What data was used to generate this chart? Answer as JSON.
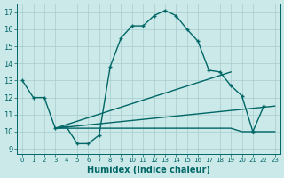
{
  "xlabel": "Humidex (Indice chaleur)",
  "xlim": [
    -0.5,
    23.5
  ],
  "ylim": [
    8.7,
    17.5
  ],
  "xticks": [
    0,
    1,
    2,
    3,
    4,
    5,
    6,
    7,
    8,
    9,
    10,
    11,
    12,
    13,
    14,
    15,
    16,
    17,
    18,
    19,
    20,
    21,
    22,
    23
  ],
  "yticks": [
    9,
    10,
    11,
    12,
    13,
    14,
    15,
    16,
    17
  ],
  "bg_color": "#cce9e9",
  "grid_color": "#a8cccc",
  "line_color": "#006666",
  "line1_x": [
    0,
    1,
    2,
    3,
    4,
    5,
    6,
    7,
    8,
    9,
    10,
    11,
    12,
    13,
    14,
    15,
    16,
    17,
    18,
    19,
    20,
    21,
    22
  ],
  "line1_y": [
    13,
    12,
    12,
    10.2,
    10.3,
    9.3,
    9.3,
    9.8,
    13.8,
    15.5,
    16.2,
    16.2,
    16.8,
    17.1,
    16.8,
    16.0,
    15.3,
    13.6,
    13.5,
    12.7,
    12.1,
    10.0,
    11.5
  ],
  "line2_x": [
    3,
    10,
    19,
    20,
    21,
    22,
    23
  ],
  "line2_y": [
    10.2,
    10.2,
    10.2,
    10.0,
    10.0,
    10.0,
    10.0
  ],
  "line3_x": [
    3,
    19
  ],
  "line3_y": [
    10.2,
    13.5
  ],
  "line4_x": [
    3,
    23
  ],
  "line4_y": [
    10.2,
    11.5
  ]
}
